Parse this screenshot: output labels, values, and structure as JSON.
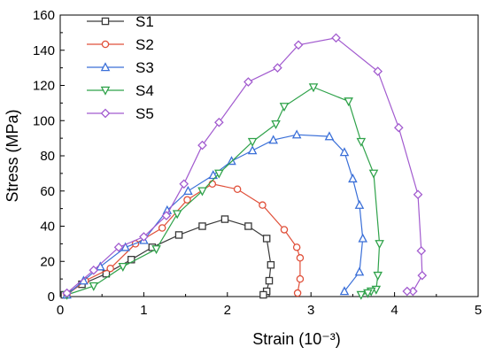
{
  "chart_data": {
    "type": "line",
    "xlabel": "Strain (10⁻³)",
    "ylabel": "Stress (MPa)",
    "xlim": [
      0,
      5
    ],
    "ylim": [
      0,
      160
    ],
    "xticks": [
      "0",
      "1",
      "2",
      "3",
      "4",
      "5"
    ],
    "yticks": [
      "0",
      "20",
      "40",
      "60",
      "80",
      "100",
      "120",
      "140",
      "160"
    ],
    "grid": false,
    "legend": "top-left",
    "series": [
      {
        "name": "S1",
        "color": "#3a3a3a",
        "marker": "square",
        "x": [
          0.05,
          0.26,
          0.55,
          0.85,
          1.1,
          1.42,
          1.7,
          1.97,
          2.25,
          2.47,
          2.52,
          2.5,
          2.47,
          2.43
        ],
        "y": [
          1,
          7,
          13,
          21,
          28,
          35,
          40,
          44,
          40,
          33,
          18,
          9,
          3,
          1
        ]
      },
      {
        "name": "S2",
        "color": "#e0503a",
        "marker": "circle",
        "x": [
          0.08,
          0.3,
          0.6,
          0.9,
          1.22,
          1.52,
          1.82,
          2.12,
          2.42,
          2.68,
          2.83,
          2.87,
          2.87,
          2.84
        ],
        "y": [
          1,
          9,
          16,
          30,
          39,
          55,
          64,
          61,
          52,
          38,
          28,
          22,
          10,
          2
        ]
      },
      {
        "name": "S3",
        "color": "#3a6fd8",
        "marker": "triangle-up",
        "x": [
          0.08,
          0.28,
          0.48,
          0.78,
          1.0,
          1.28,
          1.53,
          1.83,
          2.05,
          2.3,
          2.55,
          2.83,
          3.22,
          3.4,
          3.5,
          3.58,
          3.62,
          3.58,
          3.4
        ],
        "y": [
          1,
          9,
          17,
          28,
          32,
          49,
          60,
          69,
          77,
          83,
          89,
          92,
          91,
          82,
          67,
          52,
          33,
          14,
          3
        ]
      },
      {
        "name": "S4",
        "color": "#2fa24a",
        "marker": "triangle-down",
        "x": [
          0.08,
          0.4,
          0.75,
          1.15,
          1.4,
          1.7,
          1.9,
          2.3,
          2.58,
          2.68,
          3.03,
          3.45,
          3.6,
          3.75,
          3.82,
          3.8,
          3.78,
          3.72,
          3.68,
          3.6
        ],
        "y": [
          1,
          6,
          17,
          27,
          47,
          60,
          70,
          88,
          98,
          108,
          119,
          111,
          88,
          70,
          30,
          12,
          4,
          3,
          2,
          1
        ]
      },
      {
        "name": "S5",
        "color": "#a25bcf",
        "marker": "diamond",
        "x": [
          0.08,
          0.4,
          0.7,
          1.0,
          1.27,
          1.48,
          1.7,
          1.9,
          2.25,
          2.6,
          2.85,
          3.3,
          3.8,
          4.05,
          4.28,
          4.32,
          4.33,
          4.22,
          4.15
        ],
        "y": [
          2,
          15,
          28,
          34,
          46,
          64,
          86,
          99,
          122,
          130,
          143,
          147,
          128,
          96,
          58,
          26,
          12,
          3,
          3
        ]
      }
    ]
  }
}
